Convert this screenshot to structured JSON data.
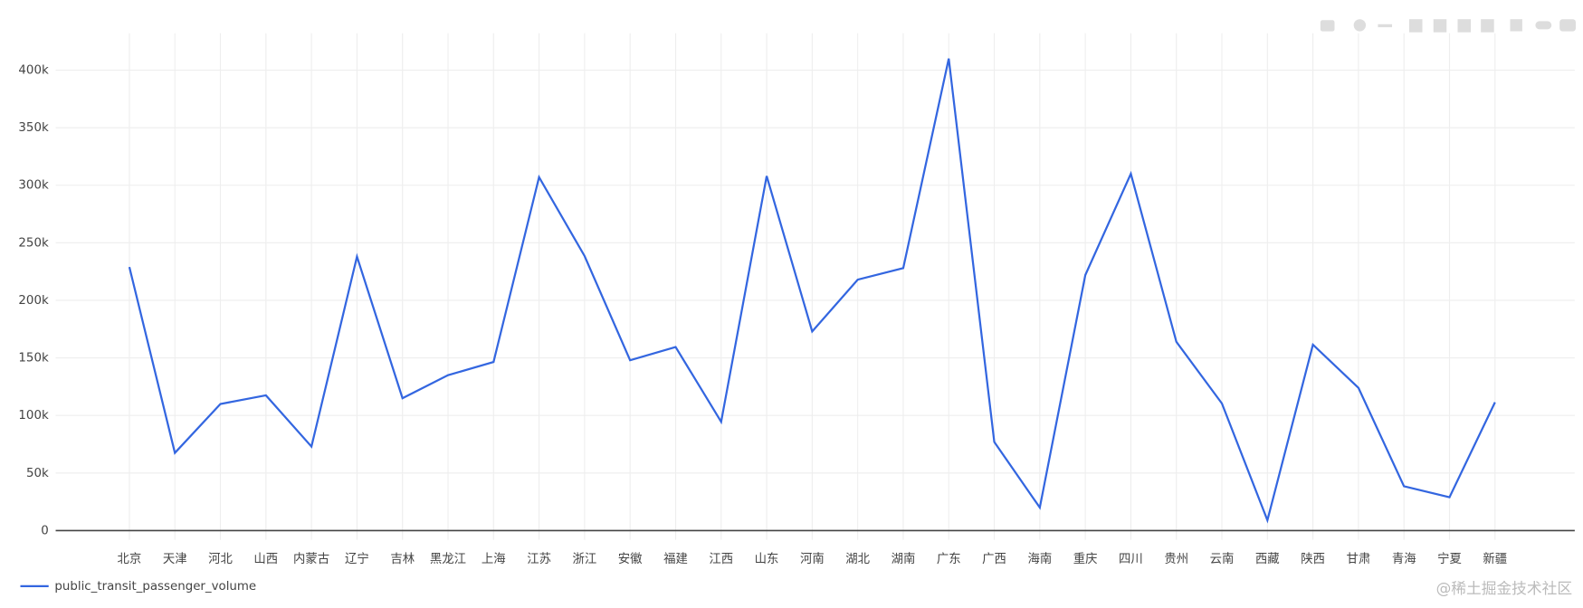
{
  "chart_data": {
    "type": "line",
    "categories": [
      "北京",
      "天津",
      "河北",
      "山西",
      "内蒙古",
      "辽宁",
      "吉林",
      "黑龙江",
      "上海",
      "江苏",
      "浙江",
      "安徽",
      "福建",
      "江西",
      "山东",
      "河南",
      "湖北",
      "湖南",
      "广东",
      "广西",
      "海南",
      "重庆",
      "四川",
      "贵州",
      "云南",
      "西藏",
      "陕西",
      "甘肃",
      "青海",
      "宁夏",
      "新疆"
    ],
    "series": [
      {
        "name": "public_transit_passenger_volume",
        "color": "#3366e0",
        "values": [
          229000,
          67500,
          110000,
          117500,
          73000,
          238000,
          115000,
          135000,
          146500,
          307000,
          238500,
          148000,
          159500,
          94500,
          308000,
          173000,
          218000,
          228000,
          410000,
          77000,
          20000,
          222000,
          310000,
          164000,
          110500,
          9000,
          161500,
          124000,
          38500,
          29000,
          111500
        ]
      }
    ],
    "ylim": [
      -8000,
      432000
    ],
    "yticks": [
      0,
      {
        "value": 50000,
        "label": "50k"
      },
      {
        "value": 100000,
        "label": "100k"
      },
      {
        "value": 150000,
        "label": "150k"
      },
      {
        "value": 200000,
        "label": "200k"
      },
      {
        "value": 250000,
        "label": "250k"
      },
      {
        "value": 300000,
        "label": "300k"
      },
      {
        "value": 350000,
        "label": "350k"
      },
      {
        "value": 400000,
        "label": "400k"
      }
    ],
    "grid": true,
    "legend": "bottom-left",
    "watermark": "@稀土掘金技术社区"
  }
}
